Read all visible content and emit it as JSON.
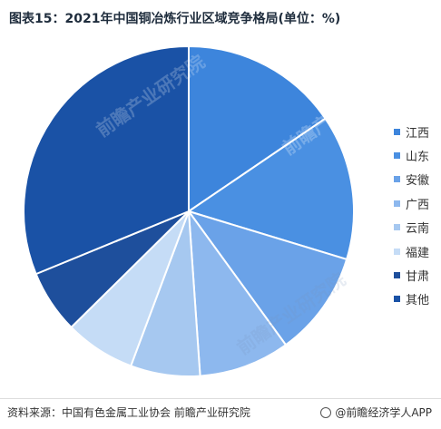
{
  "chart_data": {
    "type": "pie",
    "title": "图表15：2021年中国铜冶炼行业区域竞争格局(单位：%)",
    "slices": [
      {
        "label": "江西",
        "value": 15.5,
        "color": "#3d85dc"
      },
      {
        "label": "山东",
        "value": 14.2,
        "color": "#4a90e2"
      },
      {
        "label": "安徽",
        "value": 10.3,
        "color": "#6aa2e8"
      },
      {
        "label": "广西",
        "value": 8.9,
        "color": "#8db8ee"
      },
      {
        "label": "云南",
        "value": 6.8,
        "color": "#a6c8f0"
      },
      {
        "label": "福建",
        "value": 6.9,
        "color": "#c5dcf6"
      },
      {
        "label": "甘肃",
        "value": 6.2,
        "color": "#1e4f9c"
      },
      {
        "label": "其他",
        "value": 31.2,
        "color": "#1a52a6"
      }
    ],
    "legend_position": "right"
  },
  "footer": {
    "source": "资料来源：中国有色金属工业协会 前瞻产业研究院",
    "credit": "@前瞻经济学人APP"
  },
  "watermark": "前瞻产业研究院"
}
